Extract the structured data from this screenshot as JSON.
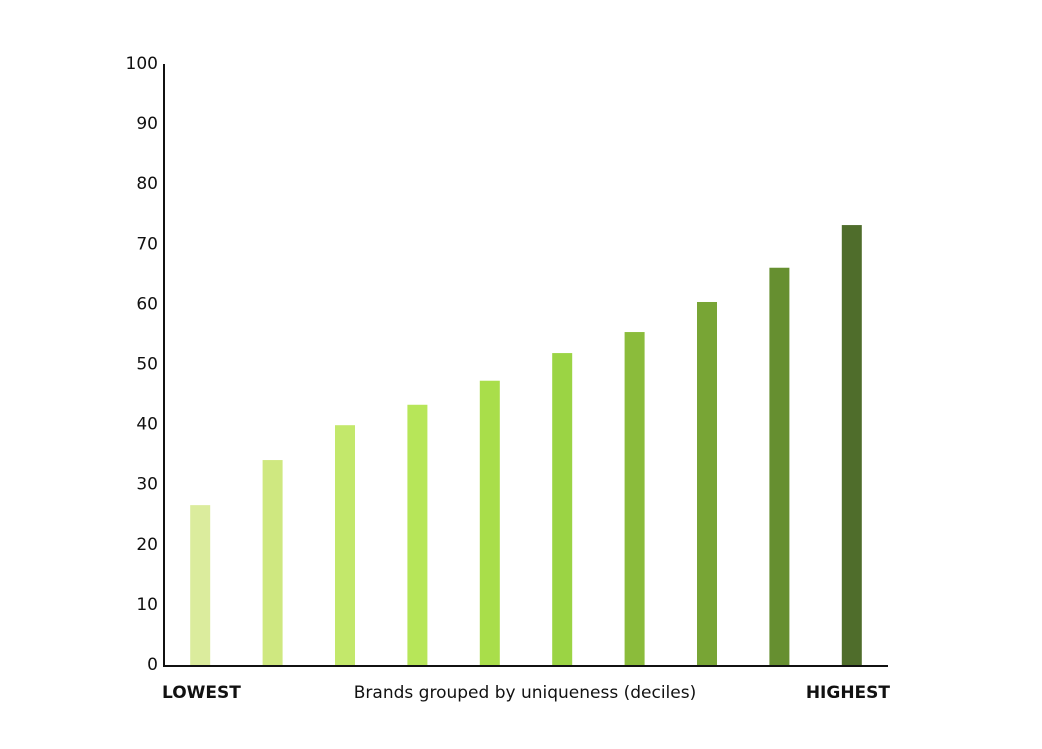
{
  "chart_data": {
    "type": "bar",
    "categories": [
      null,
      null,
      null,
      null,
      null,
      null,
      null,
      null,
      null,
      null
    ],
    "values": [
      26.6,
      34.1,
      39.9,
      43.3,
      47.3,
      51.9,
      55.4,
      60.4,
      66.1,
      73.2
    ],
    "colors": [
      "#dbec9d",
      "#cfe880",
      "#c3e86b",
      "#b7e659",
      "#a9de4a",
      "#9bd444",
      "#8bbc3b",
      "#78a535",
      "#668f30",
      "#4f6d2b"
    ],
    "ylim": [
      0,
      100
    ],
    "yticks": [
      0,
      10,
      20,
      30,
      40,
      50,
      60,
      70,
      80,
      90,
      100
    ],
    "xlabel": "Brands grouped by uniqueness (deciles)",
    "low_label": "LOWEST",
    "high_label": "HIGHEST",
    "grid": false
  }
}
